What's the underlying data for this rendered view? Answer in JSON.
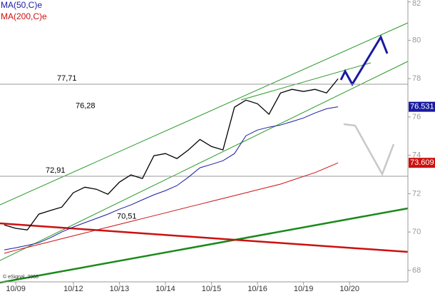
{
  "chart_data": {
    "type": "line",
    "copyright": "© eSignal, 2008",
    "categories": [
      null,
      "10/09",
      null,
      null,
      null,
      null,
      "10/12",
      null,
      null,
      null,
      "10/13",
      null,
      null,
      null,
      "10/14",
      null,
      null,
      null,
      "10/15",
      null,
      null,
      null,
      "10/16",
      null,
      null,
      null,
      "10/19",
      null,
      null,
      null,
      "10/20",
      null,
      null,
      null,
      null,
      null
    ],
    "series": [
      {
        "color": "#000000",
        "values": [
          70.37,
          70.19,
          70.11,
          70.93,
          71.12,
          71.3,
          72.05,
          72.34,
          72.23,
          71.97,
          72.6,
          72.98,
          72.79,
          73.98,
          74.09,
          73.83,
          74.28,
          74.83,
          74.46,
          74.28,
          76.51,
          76.88,
          76.69,
          76.14,
          77.25,
          77.44,
          77.33,
          77.44,
          77.25,
          77.99,
          null,
          null,
          null,
          null,
          null,
          null
        ]
      },
      {
        "name": "MA(50,C)e",
        "color": "#1a1aa0",
        "end_label": true,
        "values": [
          69.07,
          69.18,
          69.3,
          69.44,
          69.7,
          70.0,
          70.26,
          70.49,
          70.71,
          70.93,
          71.19,
          71.41,
          71.68,
          71.94,
          72.16,
          72.42,
          72.86,
          73.35,
          73.53,
          73.72,
          74.09,
          75.02,
          75.32,
          75.47,
          75.58,
          75.76,
          75.95,
          76.21,
          76.43,
          76.531,
          null,
          null,
          null,
          null,
          null,
          null
        ]
      },
      {
        "name": "MA(200,C)e",
        "color": "#cc1010",
        "end_label": true,
        "values": [
          68.89,
          69.05,
          69.2,
          69.35,
          69.5,
          69.65,
          69.8,
          69.95,
          70.1,
          70.25,
          70.4,
          70.55,
          70.7,
          70.85,
          71.0,
          71.15,
          71.3,
          71.45,
          71.6,
          71.75,
          71.9,
          72.05,
          72.2,
          72.35,
          72.5,
          72.7,
          72.9,
          73.1,
          73.35,
          73.609,
          null,
          null,
          null,
          null,
          null,
          null
        ]
      }
    ],
    "levels": [
      {
        "value": 77.71,
        "label": "77,71",
        "line": true
      },
      {
        "value": 76.28,
        "label": "76,28",
        "line": false
      },
      {
        "value": 72.91,
        "label": "72,91",
        "line": true
      },
      {
        "value": 70.51,
        "label": "70,51",
        "line": false
      }
    ],
    "ylim": [
      67.4,
      82.1
    ],
    "yticks": [
      68,
      70,
      72,
      74,
      76,
      78,
      80,
      82
    ]
  }
}
